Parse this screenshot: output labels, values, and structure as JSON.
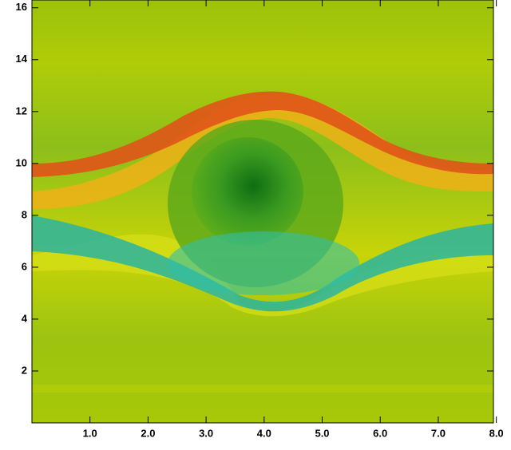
{
  "chart_data": {
    "type": "heatmap",
    "xlim": [
      0,
      7.95
    ],
    "ylim": [
      0,
      16.3
    ],
    "xticks": [
      {
        "value": 1,
        "label": "1.0"
      },
      {
        "value": 2,
        "label": "2.0"
      },
      {
        "value": 3,
        "label": "3.0"
      },
      {
        "value": 4,
        "label": "4.0"
      },
      {
        "value": 5,
        "label": "5.0"
      },
      {
        "value": 6,
        "label": "6.0"
      },
      {
        "value": 7,
        "label": "7.0"
      },
      {
        "value": 8,
        "label": "8.0"
      }
    ],
    "yticks": [
      2,
      4,
      6,
      8,
      10,
      12,
      14,
      16
    ]
  }
}
